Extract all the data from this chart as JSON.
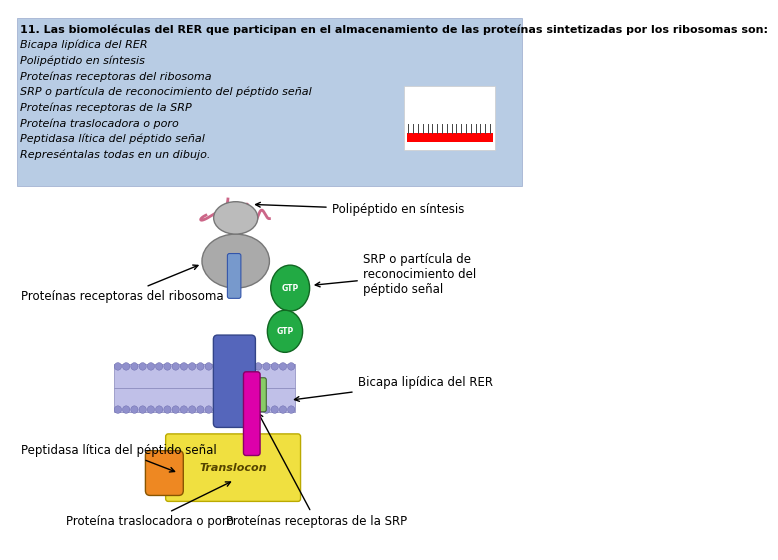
{
  "bg_color": "#ffffff",
  "header_bg": "#b8cce4",
  "header_text_color": "#000000",
  "header_lines": [
    "11. Las biomoléculas del RER que participan en el almacenamiento de las proteínas sintetizadas por los ribosomas son:",
    "Bicapa lipídica del RER",
    "Polipéptido en síntesis",
    "Proteínas receptoras del ribosoma",
    "SRP o partícula de reconocimiento del péptido señal",
    "Proteínas receptoras de la SRP",
    "Proteína traslocadora o poro",
    "Peptidasa lítica del péptido señal",
    "Represéntalas todas en un dibujo."
  ],
  "label_polipeptido": "Polipéptido en síntesis",
  "label_receptoras_ribosoma": "Proteínas receptoras del ribosoma",
  "label_srp": "SRP o partícula de\nreconocimiento del\npéptido señal",
  "label_bicapa": "Bicapa lipídica del RER",
  "label_peptidasa": "Peptidasa lítica del péptido señal",
  "label_traslocadora": "Proteína traslocadora o poro",
  "label_receptoras_srp": "Proteínas receptoras de la SRP",
  "translocon_color": "#f0e040",
  "membrane_top_color": "#c0c0e8",
  "membrane_bot_color": "#c0c0e8",
  "srp_color": "#22aa44",
  "magenta_rod": "#dd00aa",
  "orange_shape": "#ee8822",
  "light_green_receptor": "#88cc66",
  "gray_large": "#aaaaaa",
  "gray_small": "#bbbbbb",
  "blue_channel": "#7799cc",
  "pink_loop": "#cc6688",
  "pore_color": "#5566bb",
  "label_fontsize": 8.5,
  "header_fontsize": 8.0
}
